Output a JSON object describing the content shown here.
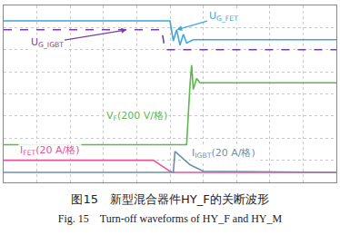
{
  "chart_data": {
    "type": "line",
    "caption_cn": "图15　新型混合器件HY_F的关断波形",
    "caption_en": "Fig. 15　Turn-off waveforms of HY_F and HY_M",
    "xlim": [
      0,
      10
    ],
    "ylim": [
      0,
      8
    ],
    "xticks": [
      0,
      1,
      2,
      3,
      4,
      5,
      6,
      7,
      8,
      9,
      10
    ],
    "yticks": [
      0,
      1,
      2,
      3,
      4,
      5,
      6,
      7,
      8
    ],
    "grid": true,
    "tick_labels": false,
    "series": [
      {
        "name": "U",
        "subscript": "G_IGBT",
        "color": "#7b3fa0",
        "line_style": "dash",
        "x": [
          0,
          4.75,
          4.85,
          10
        ],
        "values": [
          6.9,
          6.9,
          6.0,
          6.0
        ]
      },
      {
        "name": "U",
        "subscript": "G_FET",
        "color": "#3ea6dc",
        "line_style": "solid",
        "x": [
          0,
          5.0,
          5.1,
          5.2,
          5.3,
          5.4,
          5.5,
          5.7,
          10
        ],
        "values": [
          7.3,
          7.3,
          6.4,
          6.9,
          6.2,
          6.7,
          6.3,
          6.45,
          6.45
        ]
      },
      {
        "name": "V",
        "subscript": "F",
        "unit": "(200 V/格)",
        "color": "#5cb84a",
        "line_style": "solid",
        "x": [
          0,
          5.5,
          5.6,
          5.65,
          5.7,
          5.8,
          5.9,
          10
        ],
        "values": [
          1.7,
          1.7,
          4.4,
          5.3,
          4.2,
          4.7,
          4.5,
          4.5
        ]
      },
      {
        "name": "I",
        "subscript": "FET",
        "unit": "(20 A/格)",
        "color": "#e0559a",
        "line_style": "solid",
        "x": [
          0,
          4.5,
          5.0,
          5.1,
          10
        ],
        "values": [
          1.0,
          1.0,
          0.5,
          0.45,
          0.45
        ]
      },
      {
        "name": "I",
        "subscript": "IGBT",
        "unit": "(20 A/格)",
        "color": "#6f8fa8",
        "line_style": "solid",
        "x": [
          0,
          5.1,
          5.15,
          5.3,
          5.6,
          6.0,
          10
        ],
        "values": [
          0.45,
          0.45,
          1.4,
          1.2,
          0.8,
          0.5,
          0.45
        ]
      }
    ]
  }
}
